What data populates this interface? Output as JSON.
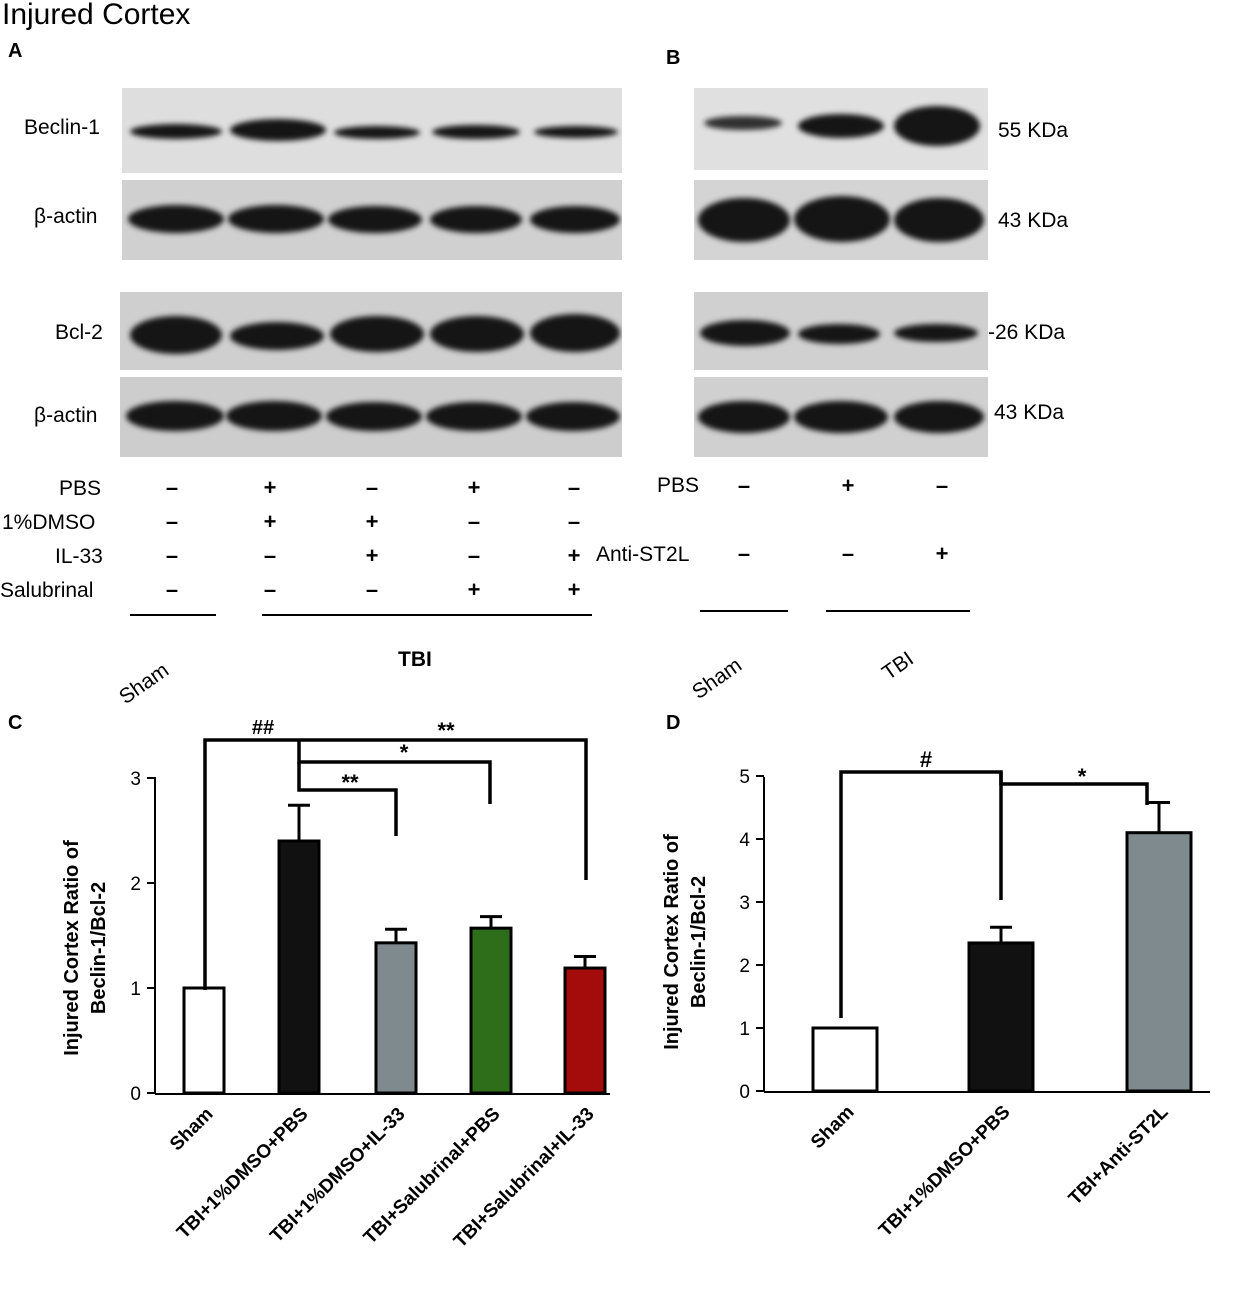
{
  "figure_title": "Injured Cortex",
  "panels": {
    "a": "A",
    "b": "B",
    "c": "C",
    "d": "D"
  },
  "blot_a": {
    "row_labels": [
      "Beclin-1",
      "β-actin",
      "Bcl-2",
      "β-actin"
    ],
    "conditions": [
      {
        "name": "PBS",
        "marks": [
          "–",
          "+",
          "–",
          "+",
          "–"
        ]
      },
      {
        "name": "1%DMSO",
        "marks": [
          "–",
          "+",
          "+",
          "–",
          "–"
        ]
      },
      {
        "name": "IL-33",
        "marks": [
          "–",
          "–",
          "+",
          "–",
          "+"
        ]
      },
      {
        "name": "Salubrinal",
        "marks": [
          "–",
          "–",
          "–",
          "+",
          "+"
        ]
      }
    ],
    "groups": [
      "Sham",
      "TBI"
    ]
  },
  "blot_b": {
    "mw_labels": [
      "55 KDa",
      "43 KDa",
      "-26 KDa",
      "43 KDa"
    ],
    "conditions": [
      {
        "name": "PBS",
        "marks": [
          "–",
          "+",
          "–"
        ]
      },
      {
        "name": "Anti-ST2L",
        "marks": [
          "–",
          "–",
          "+"
        ]
      }
    ],
    "groups": [
      "Sham",
      "TBI"
    ]
  },
  "chart_data": [
    {
      "type": "bar",
      "panel": "C",
      "ylabel": "Injured Cortex Ratio of Beclin-1/Bcl-2",
      "ylim": [
        0,
        3
      ],
      "yticks": [
        "0",
        "1",
        "2",
        "3"
      ],
      "categories": [
        "Sham",
        "TBI+1%DMSO+PBS",
        "TBI+1%DMSO+IL-33",
        "TBI+Salubrinal+PBS",
        "TBI+Salubrinal+IL-33"
      ],
      "values": [
        1.0,
        2.4,
        1.43,
        1.57,
        1.19
      ],
      "errors": [
        0,
        0.34,
        0.13,
        0.11,
        0.11
      ],
      "colors": [
        "#ffffff",
        "#111111",
        "#7f8a8f",
        "#2e6e1a",
        "#a30c0a"
      ],
      "annotations": [
        "##",
        "**",
        "*",
        "**"
      ]
    },
    {
      "type": "bar",
      "panel": "D",
      "ylabel": "Injured Cortex Ratio of Beclin-1/Bcl-2",
      "ylim": [
        0,
        5
      ],
      "yticks": [
        "0",
        "1",
        "2",
        "3",
        "4",
        "5"
      ],
      "categories": [
        "Sham",
        "TBI+1%DMSO+PBS",
        "TBI+Anti-ST2L"
      ],
      "values": [
        1.0,
        2.35,
        4.1
      ],
      "errors": [
        0,
        0.25,
        0.48
      ],
      "colors": [
        "#ffffff",
        "#111111",
        "#7f8a8f"
      ],
      "annotations": [
        "#",
        "*"
      ]
    }
  ]
}
